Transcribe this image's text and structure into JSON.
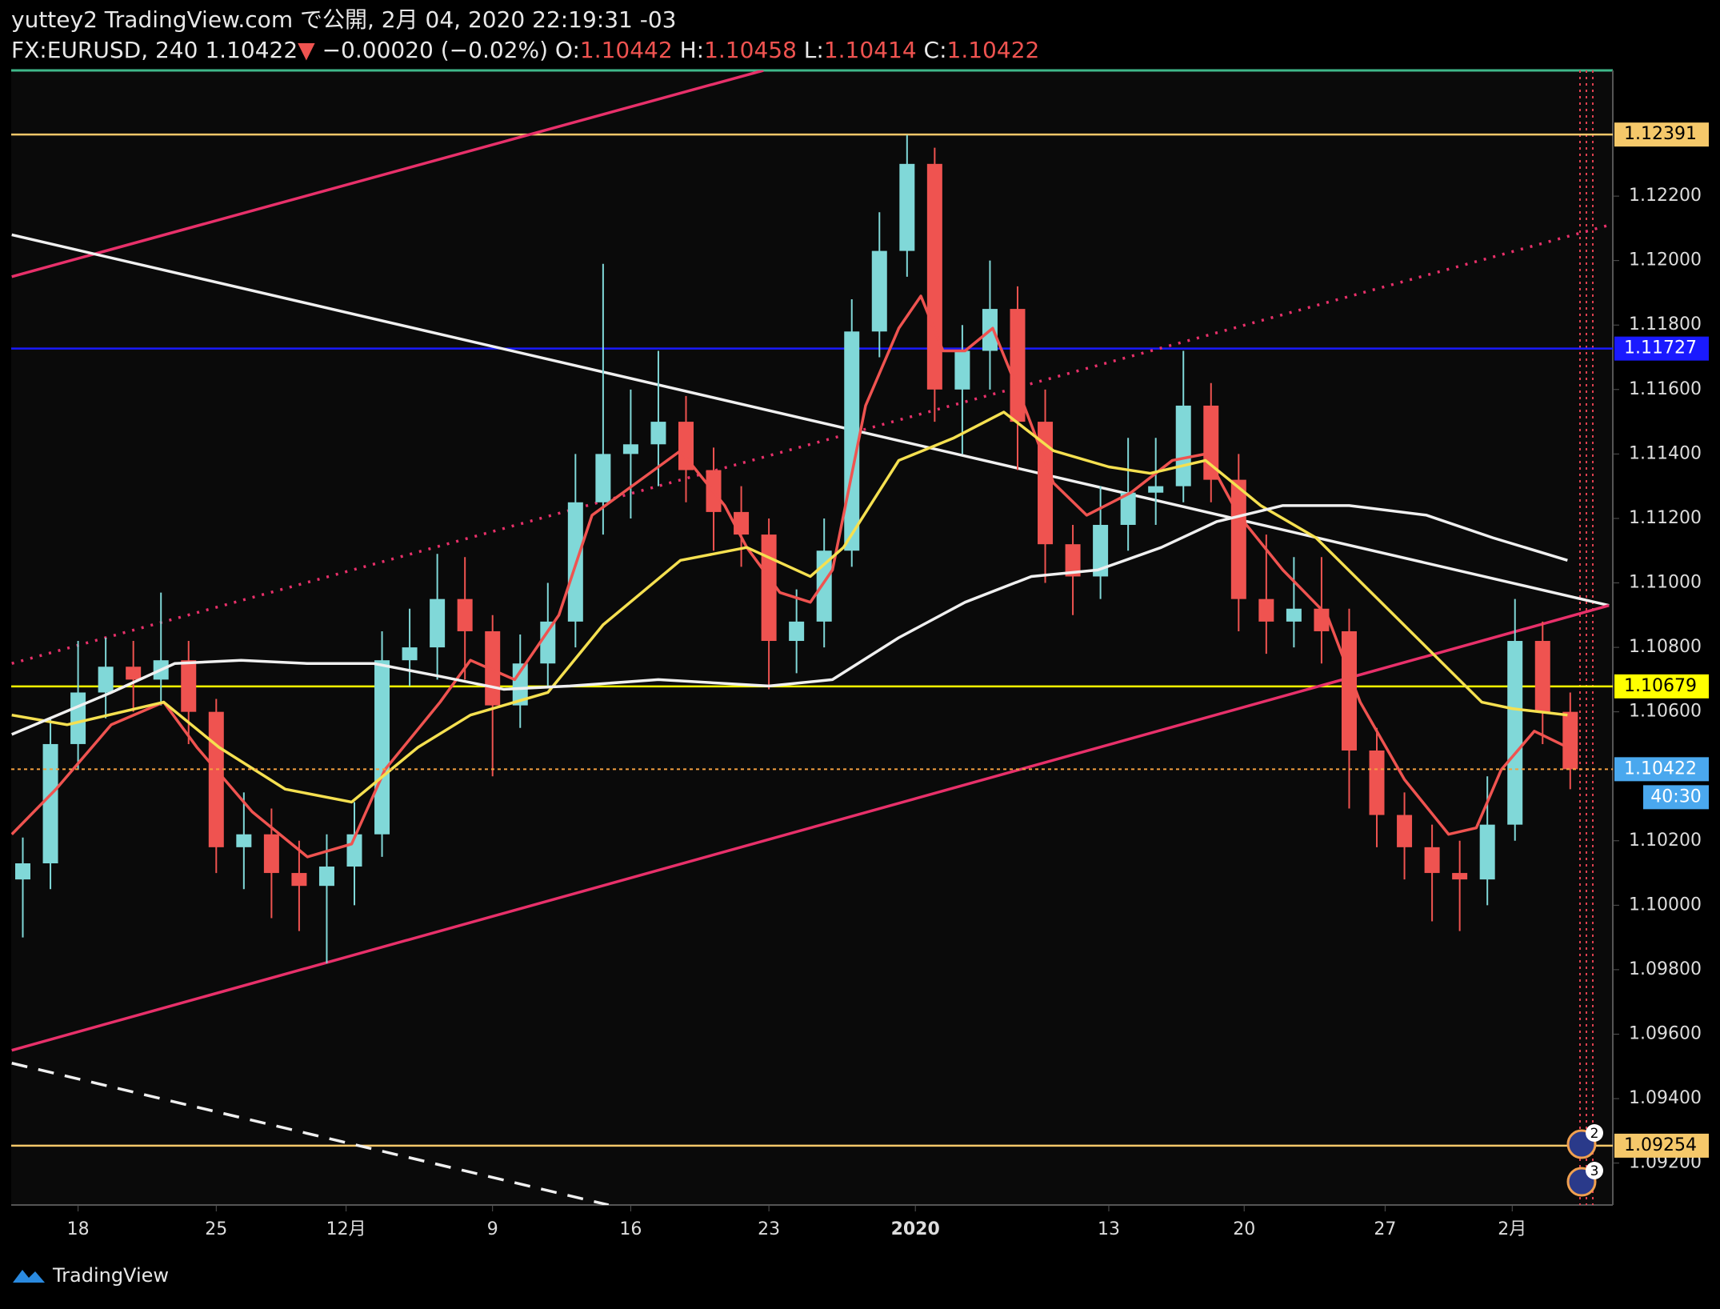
{
  "header": {
    "title": "yuttey2 TradingView.com で公開, 2月 04, 2020 22:19:31 -03",
    "symbol": "FX:EURUSD, 240",
    "last": "1.10422",
    "arrow": "▼",
    "change": "−0.00020 (−0.02%)",
    "ohlc": [
      {
        "label": "O:",
        "value": "1.10442"
      },
      {
        "label": "H:",
        "value": "1.10458"
      },
      {
        "label": "L:",
        "value": "1.10414"
      },
      {
        "label": "C:",
        "value": "1.10422"
      }
    ]
  },
  "footer": {
    "logo": "TradingView"
  },
  "chart_data": {
    "type": "candlestick",
    "up_color": "#80d8d8",
    "down_color": "#ef5350",
    "x": [
      -2,
      -1,
      0,
      1,
      2,
      3,
      4,
      5,
      6,
      7,
      8,
      9,
      10,
      11,
      12,
      13,
      14,
      15,
      16,
      17,
      18,
      19,
      20,
      21,
      22,
      23,
      24,
      25,
      26,
      27,
      28,
      29,
      30,
      31,
      32,
      33,
      34,
      35,
      36,
      37,
      38,
      39,
      40,
      41,
      42,
      43,
      44,
      45,
      46,
      47,
      48,
      49,
      50,
      51,
      52,
      53,
      54
    ],
    "open": [
      1.1008,
      1.1013,
      1.105,
      1.1066,
      1.1074,
      1.107,
      1.1076,
      1.106,
      1.1018,
      1.1022,
      1.101,
      1.1006,
      1.1012,
      1.1022,
      1.1076,
      1.108,
      1.1095,
      1.1085,
      1.1062,
      1.1075,
      1.1088,
      1.1125,
      1.114,
      1.1143,
      1.115,
      1.1135,
      1.1122,
      1.1115,
      1.1082,
      1.1088,
      1.111,
      1.1178,
      1.1203,
      1.123,
      1.116,
      1.1172,
      1.1185,
      1.115,
      1.1112,
      1.1102,
      1.1118,
      1.1128,
      1.113,
      1.1155,
      1.1132,
      1.1095,
      1.1088,
      1.1092,
      1.1085,
      1.1048,
      1.1028,
      1.1018,
      1.101,
      1.1008,
      1.1025,
      1.1082,
      1.106
    ],
    "high": [
      1.1021,
      1.1058,
      1.1082,
      1.1083,
      1.1082,
      1.1097,
      1.1082,
      1.1064,
      1.1035,
      1.103,
      1.102,
      1.1022,
      1.1032,
      1.1085,
      1.1092,
      1.1109,
      1.1108,
      1.109,
      1.1084,
      1.11,
      1.114,
      1.1199,
      1.116,
      1.1172,
      1.1158,
      1.1142,
      1.113,
      1.112,
      1.1098,
      1.112,
      1.1188,
      1.1215,
      1.1239,
      1.1235,
      1.118,
      1.12,
      1.1192,
      1.116,
      1.1118,
      1.113,
      1.1145,
      1.1145,
      1.1172,
      1.1162,
      1.114,
      1.1115,
      1.1108,
      1.1108,
      1.1092,
      1.1055,
      1.1035,
      1.1025,
      1.102,
      1.104,
      1.1095,
      1.1088,
      1.1066
    ],
    "low": [
      1.099,
      1.1005,
      1.1042,
      1.1058,
      1.106,
      1.1062,
      1.105,
      1.101,
      1.1005,
      1.0996,
      1.0992,
      1.0982,
      1.1,
      1.1015,
      1.1068,
      1.107,
      1.107,
      1.104,
      1.1055,
      1.1068,
      1.108,
      1.1115,
      1.112,
      1.113,
      1.1125,
      1.111,
      1.1105,
      1.1067,
      1.1072,
      1.108,
      1.1105,
      1.117,
      1.1195,
      1.115,
      1.114,
      1.116,
      1.1135,
      1.11,
      1.109,
      1.1095,
      1.111,
      1.1118,
      1.1125,
      1.1125,
      1.1085,
      1.1078,
      1.108,
      1.1075,
      1.103,
      1.1018,
      1.1008,
      1.0995,
      1.0992,
      1.1,
      1.102,
      1.105,
      1.1036
    ],
    "close": [
      1.1013,
      1.105,
      1.1066,
      1.1074,
      1.107,
      1.1076,
      1.106,
      1.1018,
      1.1022,
      1.101,
      1.1006,
      1.1012,
      1.1022,
      1.1076,
      1.108,
      1.1095,
      1.1085,
      1.1062,
      1.1075,
      1.1088,
      1.1125,
      1.114,
      1.1143,
      1.115,
      1.1135,
      1.1122,
      1.1115,
      1.1082,
      1.1088,
      1.111,
      1.1178,
      1.1203,
      1.123,
      1.116,
      1.1172,
      1.1185,
      1.115,
      1.1112,
      1.1102,
      1.1118,
      1.1128,
      1.113,
      1.1155,
      1.1132,
      1.1095,
      1.1088,
      1.1092,
      1.1085,
      1.1048,
      1.1028,
      1.1018,
      1.101,
      1.1008,
      1.1025,
      1.1082,
      1.106,
      1.10422
    ],
    "overlays": [
      {
        "color": "#ef5350",
        "x": [
          -2.4,
          -0.8,
          1.2,
          3.1,
          4.3,
          6.3,
          8.3,
          9.9,
          11.1,
          13.1,
          14.2,
          15.8,
          17.4,
          18.6,
          20.2,
          21.8,
          23.4,
          24.2,
          25.4,
          26.5,
          27.3,
          28.5,
          29.7,
          30.5,
          31.3,
          32.1,
          33.1,
          34.1,
          35.3,
          36.5,
          38.1,
          39.6,
          40.8,
          42.0,
          43.6,
          45.2,
          46.4,
          48.0,
          49.6,
          50.6,
          51.5,
          52.7,
          53.9
        ],
        "values": [
          1.1022,
          1.1036,
          1.1056,
          1.1063,
          1.1049,
          1.1029,
          1.1015,
          1.1019,
          1.1042,
          1.1063,
          1.1076,
          1.107,
          1.109,
          1.1121,
          1.1131,
          1.1141,
          1.1124,
          1.1111,
          1.1097,
          1.1094,
          1.1104,
          1.1155,
          1.1179,
          1.1189,
          1.1172,
          1.1172,
          1.1179,
          1.1158,
          1.1131,
          1.1121,
          1.1128,
          1.1138,
          1.114,
          1.1121,
          1.1104,
          1.109,
          1.1063,
          1.1039,
          1.1022,
          1.1024,
          1.1042,
          1.1054,
          1.1049
        ]
      },
      {
        "color": "#f5e050",
        "x": [
          -2.4,
          -0.4,
          3.1,
          5.1,
          7.5,
          9.9,
          12.3,
          14.2,
          17.0,
          19.0,
          21.8,
          24.2,
          26.5,
          27.7,
          29.7,
          31.7,
          33.5,
          35.3,
          37.3,
          38.8,
          40.8,
          42.8,
          44.8,
          46.8,
          48.8,
          50.8,
          51.9,
          53.9
        ],
        "values": [
          1.1059,
          1.1056,
          1.1063,
          1.1049,
          1.1036,
          1.1032,
          1.1049,
          1.1059,
          1.1066,
          1.1087,
          1.1107,
          1.1111,
          1.1102,
          1.1111,
          1.1138,
          1.1145,
          1.1153,
          1.1141,
          1.1136,
          1.1134,
          1.1138,
          1.1124,
          1.1114,
          1.1097,
          1.108,
          1.1063,
          1.1061,
          1.1059
        ]
      },
      {
        "color": "#f0f0f0",
        "x": [
          -2.4,
          1.2,
          3.5,
          5.9,
          8.3,
          10.7,
          13.1,
          15.4,
          17.8,
          21.0,
          25.0,
          27.3,
          29.7,
          32.1,
          34.5,
          36.9,
          39.2,
          41.2,
          43.6,
          46.0,
          48.8,
          51.2,
          53.9
        ],
        "values": [
          1.1053,
          1.1066,
          1.1075,
          1.1076,
          1.1075,
          1.1075,
          1.1071,
          1.1067,
          1.1068,
          1.107,
          1.1068,
          1.107,
          1.1083,
          1.1094,
          1.1102,
          1.1104,
          1.1111,
          1.1119,
          1.1124,
          1.1124,
          1.1121,
          1.1114,
          1.1107
        ]
      }
    ],
    "trendlines": [
      {
        "color": "#e8306a",
        "dash": "none",
        "x": [
          -2.4,
          24.8
        ],
        "values": [
          1.1195,
          1.1259
        ]
      },
      {
        "color": "#f0f0f0",
        "dash": "none",
        "x": [
          -2.4,
          55.4
        ],
        "values": [
          1.1208,
          1.1093
        ]
      },
      {
        "color": "#e8306a",
        "dash": "3 9",
        "x": [
          -2.4,
          55.4
        ],
        "values": [
          1.1075,
          1.1211
        ]
      },
      {
        "color": "#e8306a",
        "dash": "none",
        "x": [
          -2.4,
          55.4
        ],
        "values": [
          1.0955,
          1.1093
        ]
      },
      {
        "color": "#f0f0f0",
        "dash": "20 14",
        "x": [
          -2.4,
          19.2
        ],
        "values": [
          1.0951,
          1.0907
        ]
      }
    ],
    "levels": [
      {
        "value": 1.12391,
        "color": "#f5c86a",
        "text_color": "#000000"
      },
      {
        "value": 1.11727,
        "color": "#1a1aff",
        "text_color": "#ffffff"
      },
      {
        "value": 1.10679,
        "color": "#ffff00",
        "text_color": "#000000"
      },
      {
        "value": 1.09254,
        "color": "#f5c86a",
        "text_color": "#000000"
      }
    ],
    "last_price": 1.10422,
    "last_color": "#4aa8ee",
    "countdown": "40:30",
    "event_badges": [
      "2",
      "3"
    ],
    "xlim": [
      -2.42,
      55.54
    ],
    "ylim": [
      1.0907,
      1.1259
    ],
    "xticks": [
      {
        "value": 0,
        "label": "18"
      },
      {
        "value": 5,
        "label": "25"
      },
      {
        "value": 9.7,
        "label": "12月"
      },
      {
        "value": 15,
        "label": "9"
      },
      {
        "value": 20,
        "label": "16"
      },
      {
        "value": 25,
        "label": "23"
      },
      {
        "value": 30.3,
        "label": "2020"
      },
      {
        "value": 37.3,
        "label": "13"
      },
      {
        "value": 42.2,
        "label": "20"
      },
      {
        "value": 47.3,
        "label": "27"
      },
      {
        "value": 51.9,
        "label": "2月"
      }
    ],
    "yticks": [
      {
        "value": 1.092,
        "label": "1.09200"
      },
      {
        "value": 1.094,
        "label": "1.09400"
      },
      {
        "value": 1.096,
        "label": "1.09600"
      },
      {
        "value": 1.098,
        "label": "1.09800"
      },
      {
        "value": 1.1,
        "label": "1.10000"
      },
      {
        "value": 1.102,
        "label": "1.10200"
      },
      {
        "value": 1.106,
        "label": "1.10600"
      },
      {
        "value": 1.108,
        "label": "1.10800"
      },
      {
        "value": 1.11,
        "label": "1.11000"
      },
      {
        "value": 1.112,
        "label": "1.11200"
      },
      {
        "value": 1.114,
        "label": "1.11400"
      },
      {
        "value": 1.116,
        "label": "1.11600"
      },
      {
        "value": 1.118,
        "label": "1.11800"
      },
      {
        "value": 1.12,
        "label": "1.12000"
      },
      {
        "value": 1.122,
        "label": "1.12200"
      }
    ],
    "grid": false
  }
}
